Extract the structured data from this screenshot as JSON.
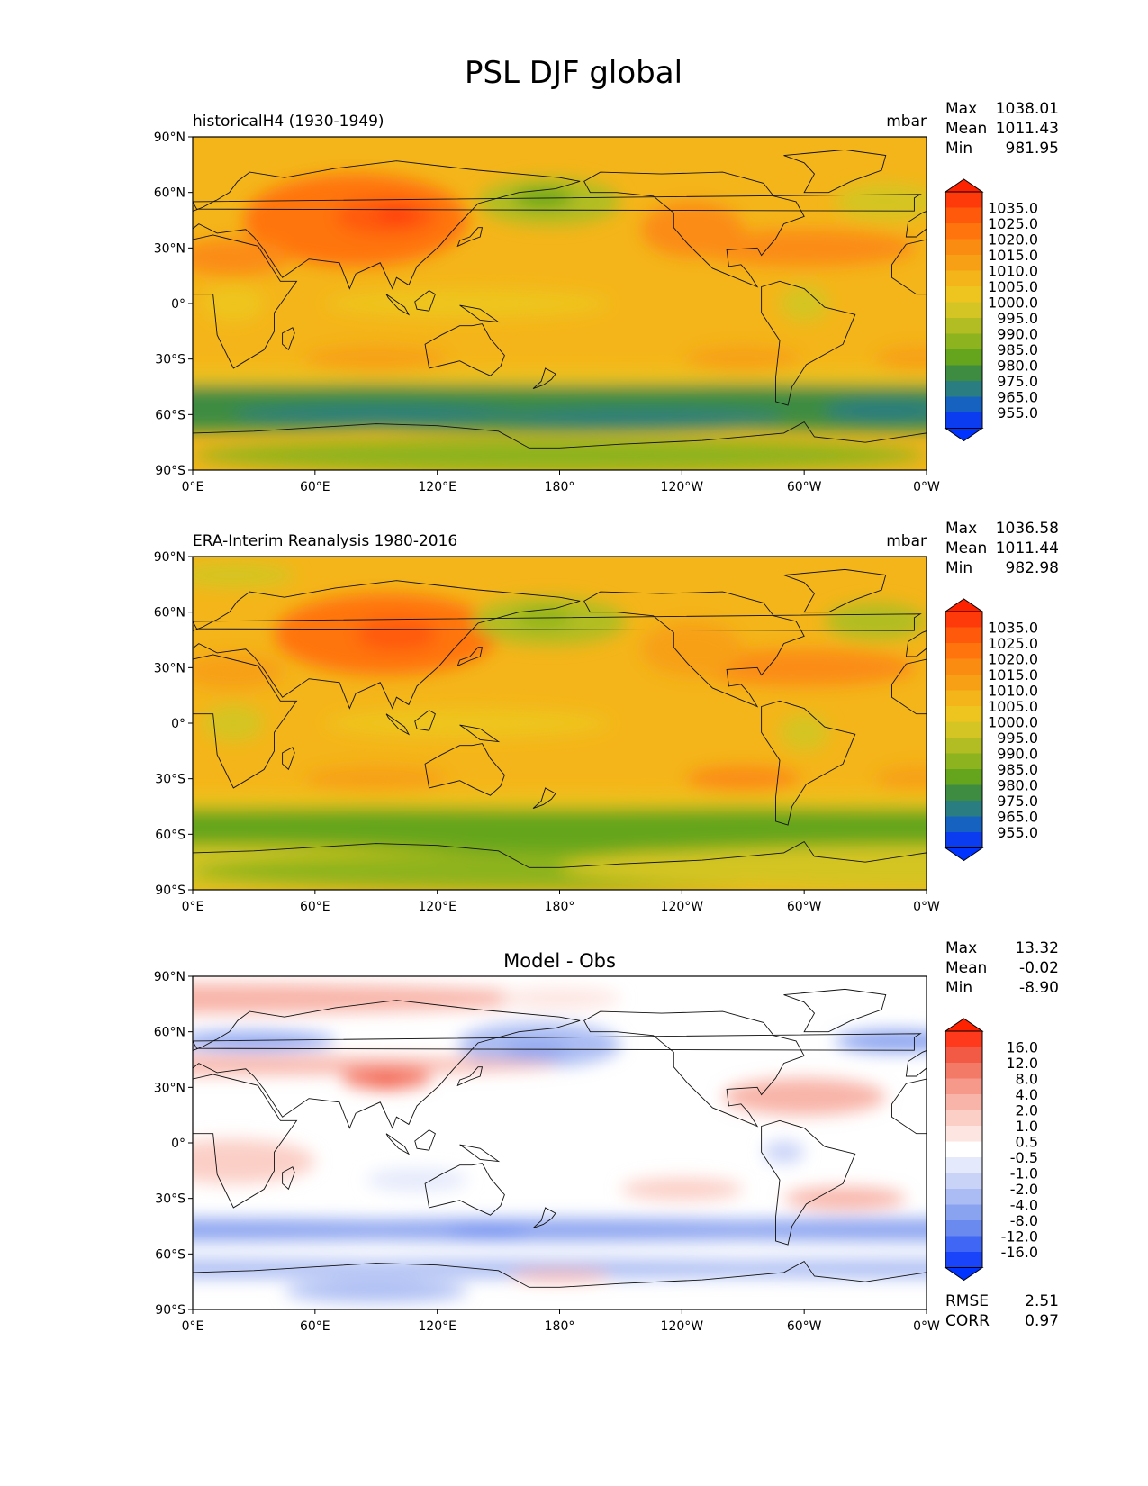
{
  "figure_title": "PSL DJF global",
  "lat_ticks": [
    "90°N",
    "60°N",
    "30°N",
    "0°",
    "30°S",
    "60°S",
    "90°S"
  ],
  "lon_ticks": [
    "0°E",
    "60°E",
    "120°E",
    "180°",
    "120°W",
    "60°W",
    "0°W"
  ],
  "panels": [
    {
      "id": "model",
      "title_left": "historicalH4 (1930-1949)",
      "title_center": "",
      "units": "mbar",
      "stats": [
        {
          "label": "Max",
          "value": "1038.01"
        },
        {
          "label": "Mean",
          "value": "1011.43"
        },
        {
          "label": "Min",
          "value": "981.95"
        }
      ],
      "colorbar_levels": [
        "1035.0",
        "1025.0",
        "1020.0",
        "1015.0",
        "1010.0",
        "1005.0",
        "1000.0",
        "995.0",
        "990.0",
        "985.0",
        "980.0",
        "975.0",
        "965.0",
        "955.0"
      ],
      "colorbar_colors": [
        "#ff3a0a",
        "#ff5a0c",
        "#ff740d",
        "#fb8c12",
        "#f7a016",
        "#f4b51a",
        "#eec51f",
        "#d4c524",
        "#b1bd22",
        "#8db31f",
        "#65a51d",
        "#3e8c42",
        "#2a7d80",
        "#1662c0",
        "#0b3cf0"
      ],
      "extend_top": "#ff2200",
      "extend_bottom": "#0033ff"
    },
    {
      "id": "obs",
      "title_left": "ERA-Interim Reanalysis 1980-2016",
      "title_center": "",
      "units": "mbar",
      "stats": [
        {
          "label": "Max",
          "value": "1036.58"
        },
        {
          "label": "Mean",
          "value": "1011.44"
        },
        {
          "label": "Min",
          "value": "982.98"
        }
      ],
      "colorbar_levels": [
        "1035.0",
        "1025.0",
        "1020.0",
        "1015.0",
        "1010.0",
        "1005.0",
        "1000.0",
        "995.0",
        "990.0",
        "985.0",
        "980.0",
        "975.0",
        "965.0",
        "955.0"
      ],
      "colorbar_colors": [
        "#ff3a0a",
        "#ff5a0c",
        "#ff740d",
        "#fb8c12",
        "#f7a016",
        "#f4b51a",
        "#eec51f",
        "#d4c524",
        "#b1bd22",
        "#8db31f",
        "#65a51d",
        "#3e8c42",
        "#2a7d80",
        "#1662c0",
        "#0b3cf0"
      ],
      "extend_top": "#ff2200",
      "extend_bottom": "#0033ff"
    },
    {
      "id": "diff",
      "title_left": "",
      "title_center": "Model - Obs",
      "units": "",
      "stats": [
        {
          "label": "Max",
          "value": "13.32"
        },
        {
          "label": "Mean",
          "value": "-0.02"
        },
        {
          "label": "Min",
          "value": "-8.90"
        }
      ],
      "colorbar_levels": [
        "16.0",
        "12.0",
        "8.0",
        "4.0",
        "2.0",
        "1.0",
        "0.5",
        "-0.5",
        "-1.0",
        "-2.0",
        "-4.0",
        "-8.0",
        "-12.0",
        "-16.0"
      ],
      "colorbar_colors": [
        "#ff3a1c",
        "#f25a45",
        "#f47a68",
        "#f6988a",
        "#f8b4a8",
        "#fbcfc6",
        "#fde6e2",
        "#ffffff",
        "#e4e9fb",
        "#c9d3f7",
        "#aabcf3",
        "#8aa3f0",
        "#6a8af0",
        "#3f66f4",
        "#1a44fa"
      ],
      "extend_top": "#ff2200",
      "extend_bottom": "#0033ff",
      "rmse_label": "RMSE",
      "rmse_value": "2.51",
      "corr_label": "CORR",
      "corr_value": "0.97"
    }
  ]
}
